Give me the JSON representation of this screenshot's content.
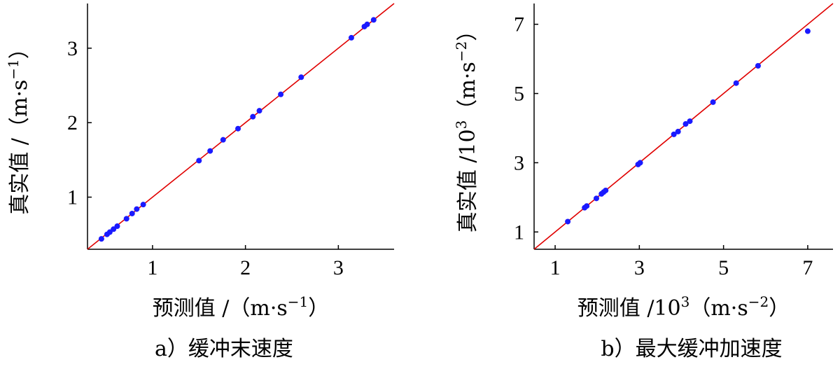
{
  "chart_data": [
    {
      "type": "scatter",
      "subtitle": "a）缓冲末速度",
      "xlabel": "预测值 /（m·s⁻¹）",
      "ylabel": "真实值 /（m·s⁻¹）",
      "xlim": [
        0.3,
        3.6
      ],
      "ylim": [
        0.3,
        3.6
      ],
      "xticks": [
        1,
        2,
        3
      ],
      "yticks": [
        1,
        2,
        3
      ],
      "tick_labels_x": [
        "1",
        "2",
        "3"
      ],
      "tick_labels_y": [
        "1",
        "2",
        "3"
      ],
      "grid": false,
      "reference_line": {
        "type": "y=x",
        "color": "#e00000"
      },
      "point_color": "#1a1aff",
      "points": [
        [
          0.45,
          0.44
        ],
        [
          0.51,
          0.5
        ],
        [
          0.54,
          0.53
        ],
        [
          0.58,
          0.57
        ],
        [
          0.62,
          0.61
        ],
        [
          0.72,
          0.71
        ],
        [
          0.78,
          0.78
        ],
        [
          0.83,
          0.84
        ],
        [
          0.9,
          0.9
        ],
        [
          1.5,
          1.49
        ],
        [
          1.62,
          1.62
        ],
        [
          1.76,
          1.77
        ],
        [
          1.92,
          1.92
        ],
        [
          2.08,
          2.08
        ],
        [
          2.15,
          2.16
        ],
        [
          2.38,
          2.38
        ],
        [
          2.6,
          2.61
        ],
        [
          3.14,
          3.14
        ],
        [
          3.28,
          3.29
        ],
        [
          3.31,
          3.32
        ],
        [
          3.38,
          3.38
        ]
      ]
    },
    {
      "type": "scatter",
      "subtitle": "b）最大缓冲加速度",
      "xlabel": "预测值 /10³（m·s⁻²）",
      "ylabel": "真实值 /10³（m·s⁻²）",
      "xlim": [
        0.5,
        7.6
      ],
      "ylim": [
        0.5,
        7.6
      ],
      "xticks": [
        1,
        3,
        5,
        7
      ],
      "yticks": [
        1,
        3,
        5,
        7
      ],
      "tick_labels_x": [
        "1",
        "3",
        "5",
        "7"
      ],
      "tick_labels_y": [
        "1",
        "3",
        "5",
        "7"
      ],
      "grid": false,
      "reference_line": {
        "type": "y=x",
        "color": "#e00000"
      },
      "point_color": "#1a1aff",
      "points": [
        [
          1.3,
          1.3
        ],
        [
          1.7,
          1.7
        ],
        [
          1.75,
          1.75
        ],
        [
          1.98,
          1.97
        ],
        [
          2.1,
          2.1
        ],
        [
          2.15,
          2.15
        ],
        [
          2.2,
          2.2
        ],
        [
          2.97,
          2.95
        ],
        [
          3.02,
          3.0
        ],
        [
          3.82,
          3.82
        ],
        [
          3.92,
          3.9
        ],
        [
          4.1,
          4.12
        ],
        [
          4.2,
          4.2
        ],
        [
          4.75,
          4.75
        ],
        [
          5.3,
          5.3
        ],
        [
          5.82,
          5.8
        ],
        [
          7.0,
          6.8
        ]
      ]
    }
  ]
}
